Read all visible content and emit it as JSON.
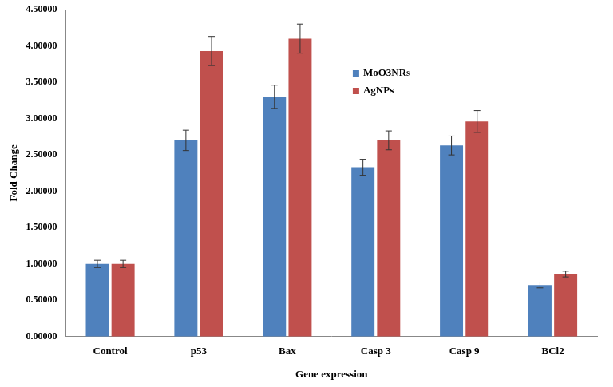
{
  "chart_data": {
    "type": "bar",
    "x_label": "Gene expression",
    "y_label": "Fold Change",
    "categories": [
      "Control",
      "p53",
      "Bax",
      "Casp 3",
      "Casp 9",
      "BCl2"
    ],
    "series": [
      {
        "name": "MoO3NRs",
        "color": "#4f81bd",
        "values": [
          1.0,
          2.7,
          3.3,
          2.33,
          2.63,
          0.71
        ],
        "errors": [
          0.05,
          0.14,
          0.16,
          0.11,
          0.13,
          0.04
        ]
      },
      {
        "name": "AgNPs",
        "color": "#c0504d",
        "values": [
          1.0,
          3.93,
          4.1,
          2.7,
          2.96,
          0.86
        ],
        "errors": [
          0.05,
          0.2,
          0.2,
          0.13,
          0.15,
          0.04
        ]
      }
    ],
    "ylim": [
      0,
      4.5
    ],
    "yticks": [
      {
        "value": 0,
        "label": "0.00000"
      },
      {
        "value": 0.5,
        "label": "0.50000"
      },
      {
        "value": 1,
        "label": "1.00000"
      },
      {
        "value": 1.5,
        "label": "1.50000"
      },
      {
        "value": 2,
        "label": "2.00000"
      },
      {
        "value": 2.5,
        "label": "2.50000"
      },
      {
        "value": 3,
        "label": "3.00000"
      },
      {
        "value": 3.5,
        "label": "3.50000"
      },
      {
        "value": 4,
        "label": "4.00000"
      },
      {
        "value": 4.5,
        "label": "4.50000"
      }
    ],
    "grid": false,
    "legend": "top-right"
  }
}
